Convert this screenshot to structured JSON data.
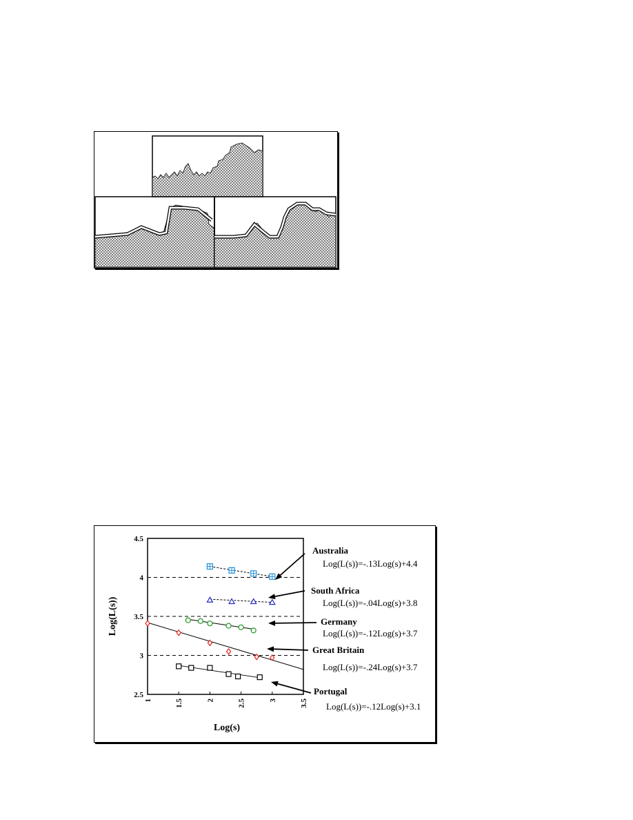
{
  "coastline_figure": {
    "description_icon": "fractal-coastline-measurement-illustration"
  },
  "chart_data": {
    "type": "scatter",
    "xlabel": "Log(s)",
    "ylabel": "Log(L(s))",
    "xlim": [
      1,
      3.5
    ],
    "ylim": [
      2.5,
      4.5
    ],
    "x_ticks": [
      "1",
      "1.5",
      "2",
      "2.5",
      "3",
      "3.5"
    ],
    "y_ticks": [
      "2.5",
      "3",
      "3.5",
      "4",
      "4.5"
    ],
    "reference_lines_y": [
      3,
      3.5,
      4
    ],
    "series": [
      {
        "name": "Australia",
        "equation": "Log(L(s))=-.13Log(s)+4.4",
        "color": "#1e8fd6",
        "marker": "square-plus",
        "line_style": "dashed",
        "fit_range": [
          2,
          3
        ],
        "slope": -0.13,
        "intercept": 4.4,
        "x": [
          2,
          2.35,
          2.7,
          3
        ],
        "y": [
          4.14,
          4.09,
          4.05,
          4.01
        ]
      },
      {
        "name": "South Africa",
        "equation": "Log(L(s))=-.04Log(s)+3.8",
        "color": "#2929c8",
        "marker": "triangle",
        "line_style": "dashed",
        "fit_range": [
          2,
          3
        ],
        "slope": -0.04,
        "intercept": 3.8,
        "x": [
          2,
          2.35,
          2.7,
          3
        ],
        "y": [
          3.71,
          3.69,
          3.69,
          3.68
        ]
      },
      {
        "name": "Germany",
        "equation": "Log(L(s))=-.12Log(s)+3.7",
        "color": "#1c9a1c",
        "marker": "circle",
        "line_style": "solid",
        "fit_range": [
          1.65,
          2.7
        ],
        "slope": -0.12,
        "intercept": 3.66,
        "x": [
          1.65,
          1.85,
          2,
          2.3,
          2.5,
          2.7
        ],
        "y": [
          3.45,
          3.44,
          3.41,
          3.38,
          3.36,
          3.32
        ]
      },
      {
        "name": "Great Britain",
        "equation": "Log(L(s))=-.24Log(s)+3.7",
        "color": "#e0261d",
        "marker": "diamond",
        "line_style": "solid",
        "fit_range": [
          1,
          3.5
        ],
        "slope": -0.24,
        "intercept": 3.66,
        "x": [
          1,
          1.5,
          2,
          2.3,
          2.75,
          3
        ],
        "y": [
          3.41,
          3.29,
          3.16,
          3.05,
          2.98,
          2.97
        ]
      },
      {
        "name": "Portugal",
        "equation": "Log(L(s))=-.12Log(s)+3.1",
        "color": "#000000",
        "marker": "square",
        "line_style": "solid",
        "fit_range": [
          1.5,
          2.8
        ],
        "slope": -0.12,
        "intercept": 3.05,
        "x": [
          1.5,
          1.7,
          2,
          2.3,
          2.45,
          2.8
        ],
        "y": [
          2.86,
          2.84,
          2.84,
          2.76,
          2.73,
          2.72
        ]
      }
    ]
  }
}
